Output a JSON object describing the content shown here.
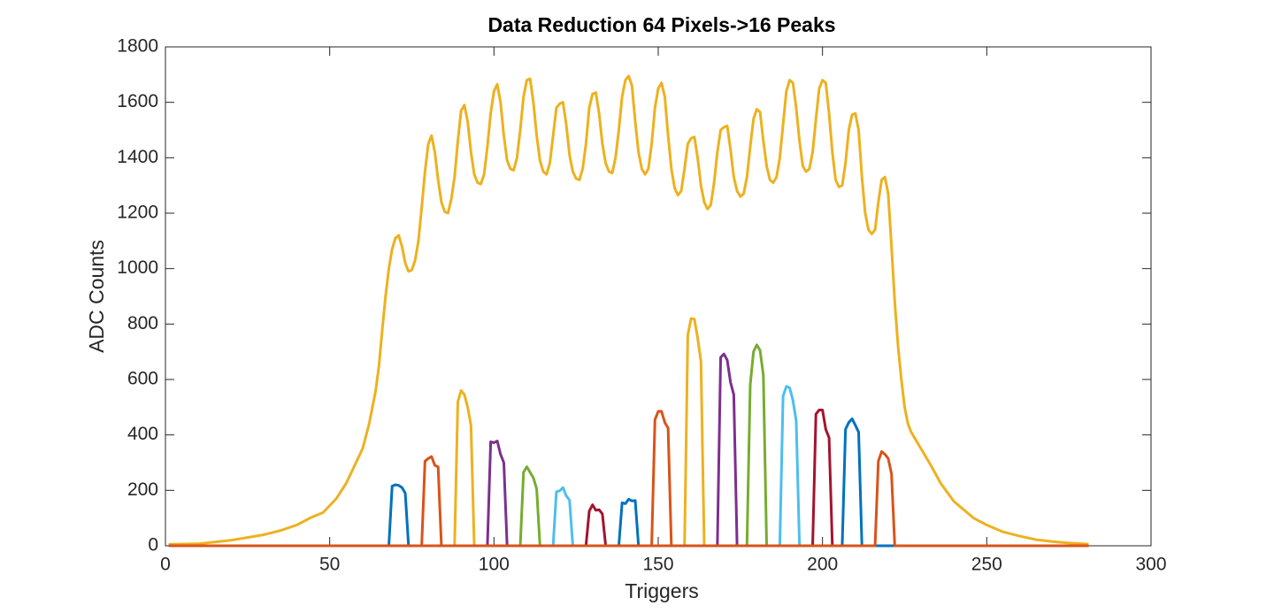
{
  "chart_data": {
    "type": "line",
    "title": "Data Reduction 64 Pixels->16 Peaks",
    "xlabel": "Triggers",
    "ylabel": "ADC Counts",
    "xlim": [
      0,
      300
    ],
    "xticks": [
      0,
      50,
      100,
      150,
      200,
      250,
      300
    ],
    "ylim": [
      0,
      1800
    ],
    "yticks": [
      0,
      200,
      400,
      600,
      800,
      1000,
      1200,
      1400,
      1600,
      1800
    ],
    "grid": false,
    "series": [
      {
        "color": "#EDB120",
        "x": [
          1,
          10,
          20,
          30,
          35,
          40,
          44,
          48,
          52,
          55,
          58,
          60,
          62,
          64,
          65,
          66,
          67,
          68,
          69,
          70,
          71,
          72,
          73,
          74,
          75,
          76,
          77,
          78,
          79,
          80,
          81,
          82,
          83,
          84,
          85,
          86,
          87,
          88,
          89,
          90,
          91,
          92,
          93,
          94,
          95,
          96,
          97,
          98,
          99,
          100,
          101,
          102,
          103,
          104,
          105,
          106,
          107,
          108,
          109,
          110,
          111,
          112,
          113,
          114,
          115,
          116,
          117,
          118,
          119,
          120,
          121,
          122,
          123,
          124,
          125,
          126,
          127,
          128,
          129,
          130,
          131,
          132,
          133,
          134,
          135,
          136,
          137,
          138,
          139,
          140,
          141,
          142,
          143,
          144,
          145,
          146,
          147,
          148,
          149,
          150,
          151,
          152,
          153,
          154,
          155,
          156,
          157,
          158,
          159,
          160,
          161,
          162,
          163,
          164,
          165,
          166,
          167,
          168,
          169,
          170,
          171,
          172,
          173,
          174,
          175,
          176,
          177,
          178,
          179,
          180,
          181,
          182,
          183,
          184,
          185,
          186,
          187,
          188,
          189,
          190,
          191,
          192,
          193,
          194,
          195,
          196,
          197,
          198,
          199,
          200,
          201,
          202,
          203,
          204,
          205,
          206,
          207,
          208,
          209,
          210,
          211,
          212,
          213,
          214,
          215,
          216,
          217,
          218,
          219,
          220,
          221,
          222,
          223,
          224,
          225,
          226,
          227,
          228,
          230,
          233,
          236,
          240,
          243,
          246,
          250,
          255,
          260,
          265,
          270,
          275,
          281
        ],
        "values": [
          5,
          7,
          20,
          40,
          55,
          75,
          100,
          120,
          170,
          225,
          300,
          350,
          440,
          560,
          650,
          780,
          900,
          1000,
          1070,
          1110,
          1120,
          1080,
          1020,
          990,
          995,
          1030,
          1100,
          1220,
          1350,
          1450,
          1480,
          1420,
          1320,
          1240,
          1205,
          1200,
          1250,
          1330,
          1460,
          1570,
          1590,
          1530,
          1420,
          1340,
          1310,
          1305,
          1340,
          1440,
          1560,
          1640,
          1665,
          1600,
          1480,
          1390,
          1360,
          1355,
          1400,
          1500,
          1620,
          1680,
          1685,
          1600,
          1480,
          1390,
          1350,
          1340,
          1380,
          1480,
          1580,
          1595,
          1600,
          1520,
          1410,
          1350,
          1325,
          1320,
          1360,
          1450,
          1580,
          1630,
          1635,
          1560,
          1450,
          1380,
          1350,
          1345,
          1400,
          1500,
          1620,
          1680,
          1695,
          1660,
          1530,
          1420,
          1360,
          1340,
          1360,
          1450,
          1580,
          1650,
          1670,
          1620,
          1480,
          1360,
          1290,
          1265,
          1280,
          1360,
          1450,
          1470,
          1475,
          1400,
          1300,
          1240,
          1215,
          1230,
          1310,
          1420,
          1500,
          1510,
          1515,
          1430,
          1330,
          1280,
          1260,
          1270,
          1330,
          1440,
          1540,
          1575,
          1565,
          1460,
          1370,
          1320,
          1310,
          1330,
          1400,
          1520,
          1640,
          1680,
          1670,
          1580,
          1460,
          1370,
          1350,
          1360,
          1420,
          1540,
          1650,
          1680,
          1670,
          1560,
          1420,
          1320,
          1295,
          1300,
          1380,
          1500,
          1555,
          1560,
          1500,
          1330,
          1200,
          1140,
          1125,
          1140,
          1240,
          1320,
          1330,
          1270,
          1080,
          880,
          720,
          600,
          500,
          440,
          410,
          390,
          350,
          290,
          225,
          160,
          130,
          100,
          75,
          50,
          35,
          22,
          15,
          10,
          6
        ]
      },
      {
        "color": "#0072BD",
        "x": [
          1,
          68,
          69,
          70,
          71,
          72,
          73,
          74,
          281
        ],
        "values": [
          0,
          0,
          215,
          220,
          218,
          210,
          190,
          0,
          0
        ]
      },
      {
        "color": "#D95319",
        "x": [
          1,
          78,
          79,
          80,
          81,
          82,
          83,
          84,
          281
        ],
        "values": [
          0,
          0,
          305,
          315,
          322,
          290,
          285,
          0,
          0
        ]
      },
      {
        "color": "#EDB120",
        "x": [
          1,
          88,
          89,
          90,
          91,
          92,
          93,
          94,
          281
        ],
        "values": [
          0,
          0,
          520,
          560,
          545,
          500,
          435,
          0,
          0
        ]
      },
      {
        "color": "#7E2F8E",
        "x": [
          1,
          98,
          99,
          100,
          101,
          102,
          103,
          104,
          281
        ],
        "values": [
          0,
          0,
          375,
          372,
          378,
          330,
          300,
          0,
          0
        ]
      },
      {
        "color": "#77AC30",
        "x": [
          1,
          108,
          109,
          110,
          111,
          112,
          113,
          114,
          281
        ],
        "values": [
          0,
          0,
          265,
          285,
          265,
          245,
          205,
          0,
          0
        ]
      },
      {
        "color": "#4DBEEE",
        "x": [
          1,
          118,
          119,
          120,
          121,
          122,
          123,
          124,
          281
        ],
        "values": [
          0,
          0,
          195,
          198,
          210,
          180,
          165,
          0,
          0
        ]
      },
      {
        "color": "#A2142F",
        "x": [
          1,
          128,
          129,
          130,
          131,
          132,
          133,
          134,
          281
        ],
        "values": [
          0,
          0,
          125,
          148,
          128,
          130,
          115,
          0,
          0
        ]
      },
      {
        "color": "#0072BD",
        "x": [
          1,
          138,
          139,
          140,
          141,
          142,
          143,
          144,
          281
        ],
        "values": [
          0,
          0,
          155,
          152,
          168,
          162,
          163,
          0,
          0
        ]
      },
      {
        "color": "#D95319",
        "x": [
          1,
          148,
          149,
          150,
          151,
          152,
          153,
          154,
          281
        ],
        "values": [
          0,
          0,
          455,
          485,
          485,
          445,
          425,
          0,
          0
        ]
      },
      {
        "color": "#EDB120",
        "x": [
          1,
          158,
          159,
          160,
          161,
          162,
          163,
          164,
          281
        ],
        "values": [
          0,
          0,
          760,
          820,
          818,
          750,
          665,
          0,
          0
        ]
      },
      {
        "color": "#7E2F8E",
        "x": [
          1,
          168,
          169,
          170,
          171,
          172,
          173,
          174,
          281
        ],
        "values": [
          0,
          0,
          680,
          692,
          670,
          590,
          545,
          0,
          0
        ]
      },
      {
        "color": "#77AC30",
        "x": [
          1,
          177,
          178,
          179,
          180,
          181,
          182,
          183,
          281
        ],
        "values": [
          0,
          0,
          580,
          700,
          725,
          705,
          615,
          0,
          0
        ]
      },
      {
        "color": "#4DBEEE",
        "x": [
          1,
          187,
          188,
          189,
          190,
          191,
          192,
          193,
          281
        ],
        "values": [
          0,
          0,
          540,
          575,
          570,
          525,
          450,
          0,
          0
        ]
      },
      {
        "color": "#A2142F",
        "x": [
          1,
          197,
          198,
          199,
          200,
          201,
          202,
          203,
          281
        ],
        "values": [
          0,
          0,
          475,
          490,
          490,
          420,
          390,
          0,
          0
        ]
      },
      {
        "color": "#0072BD",
        "x": [
          1,
          206,
          207,
          208,
          209,
          210,
          211,
          212,
          281
        ],
        "values": [
          0,
          0,
          420,
          445,
          458,
          435,
          410,
          0,
          0
        ]
      },
      {
        "color": "#D95319",
        "x": [
          1,
          216,
          217,
          218,
          219,
          220,
          221,
          222,
          281
        ],
        "values": [
          0,
          0,
          305,
          340,
          330,
          315,
          260,
          0,
          0
        ]
      }
    ]
  }
}
